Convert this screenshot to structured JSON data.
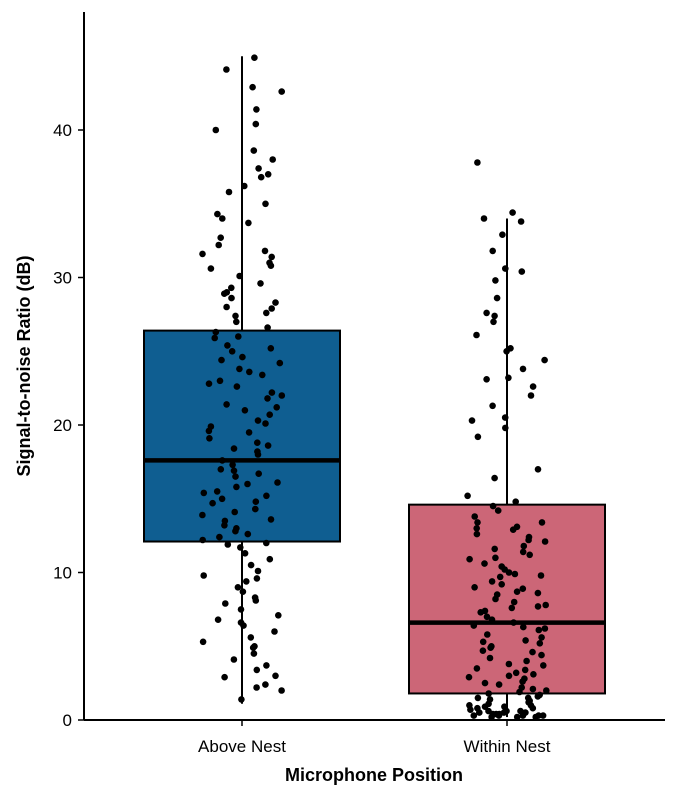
{
  "chart_data": {
    "type": "box",
    "title": "",
    "xlabel": "Microphone Position",
    "ylabel": "Signal-to-noise Ratio (dB)",
    "ylim": [
      0,
      47
    ],
    "yticks": [
      0,
      10,
      20,
      30,
      40
    ],
    "grid": false,
    "legend": "none",
    "categories": [
      "Above Nest",
      "Within Nest"
    ],
    "boxes": [
      {
        "category": "Above Nest",
        "color": "#0f5e91",
        "whisker_low": 1.1,
        "q1": 12.1,
        "median": 17.6,
        "q3": 26.4,
        "whisker_high": 45.0
      },
      {
        "category": "Within Nest",
        "color": "#cc6677",
        "whisker_low": 0.2,
        "q1": 1.8,
        "median": 6.6,
        "q3": 14.6,
        "whisker_high": 34.0
      }
    ],
    "points": [
      [
        44.9,
        44.1,
        42.9,
        42.6,
        41.4,
        40.4,
        40.0,
        38.0,
        37.4,
        37.0,
        36.8,
        35.8,
        35.0,
        34.3,
        33.7,
        32.7,
        32.2,
        31.8,
        31.4,
        31.0,
        30.6,
        30.1,
        29.6,
        29.3,
        28.9,
        28.6,
        28.3,
        27.9,
        27.4,
        27.0,
        26.6,
        26.3,
        25.9,
        25.4,
        25.0,
        24.6,
        24.2,
        23.8,
        23.4,
        23.0,
        22.6,
        22.2,
        21.8,
        21.4,
        21.0,
        20.7,
        20.3,
        19.9,
        19.5,
        19.1,
        18.8,
        18.4,
        18.0,
        17.6,
        17.3,
        16.9,
        16.5,
        16.1,
        15.8,
        15.4,
        15.0,
        14.7,
        14.3,
        13.9,
        13.5,
        13.2,
        12.8,
        12.4,
        12.0,
        11.7,
        11.3,
        10.9,
        10.5,
        10.1,
        9.8,
        9.4,
        9.0,
        8.7,
        8.3,
        7.9,
        7.5,
        7.1,
        6.8,
        6.4,
        6.0,
        5.6,
        5.3,
        4.9,
        4.5,
        4.1,
        3.7,
        3.4,
        2.9,
        2.4,
        2.0,
        1.4,
        15.5,
        16.0,
        14.8,
        13.6,
        12.6,
        18.2,
        19.6,
        21.2,
        22.8,
        24.4,
        26.0,
        27.6,
        29.0,
        30.8,
        17.0,
        15.2,
        14.1,
        13.0,
        12.2,
        11.9,
        16.7,
        18.6,
        20.1,
        22.0,
        23.6,
        25.2,
        28.0,
        31.6,
        34.0,
        36.2,
        38.6,
        9.6,
        8.1,
        6.6,
        5.0,
        3.0,
        2.2
      ],
      [
        37.8,
        34.4,
        34.0,
        33.8,
        32.9,
        31.8,
        30.4,
        29.8,
        28.6,
        27.6,
        27.0,
        26.1,
        25.2,
        24.4,
        23.8,
        23.2,
        22.6,
        22.0,
        21.3,
        20.5,
        19.8,
        19.2,
        17.0,
        16.4,
        15.2,
        14.8,
        14.2,
        13.8,
        13.4,
        13.0,
        12.6,
        12.2,
        11.8,
        11.4,
        11.0,
        10.6,
        10.2,
        9.8,
        9.4,
        9.0,
        8.6,
        8.2,
        7.8,
        7.4,
        7.0,
        6.6,
        6.2,
        5.8,
        5.4,
        5.0,
        4.6,
        4.2,
        3.8,
        3.4,
        3.0,
        2.6,
        2.2,
        1.8,
        1.5,
        1.2,
        1.0,
        0.8,
        0.6,
        0.5,
        0.4,
        0.3,
        0.2,
        12.9,
        11.6,
        10.4,
        9.2,
        8.0,
        6.8,
        5.6,
        4.4,
        3.2,
        2.4,
        1.6,
        1.1,
        0.7,
        0.4,
        0.3,
        13.4,
        12.1,
        10.9,
        9.7,
        8.5,
        7.3,
        6.1,
        4.9,
        3.7,
        2.8,
        2.0,
        1.3,
        0.9,
        0.6,
        0.3,
        0.2,
        11.2,
        9.9,
        8.7,
        7.6,
        6.4,
        5.2,
        4.0,
        2.9,
        1.9,
        1.4,
        0.8,
        0.5,
        0.3,
        10.0,
        7.7,
        5.3,
        3.5,
        2.5,
        1.7,
        1.0,
        0.6,
        0.4,
        0.2,
        12.4,
        8.9,
        6.3,
        4.7,
        3.1,
        2.1,
        1.5,
        0.9,
        0.5,
        0.3,
        23.1,
        27.4,
        30.6,
        25.0,
        20.3,
        14.5,
        13.1
      ]
    ]
  }
}
